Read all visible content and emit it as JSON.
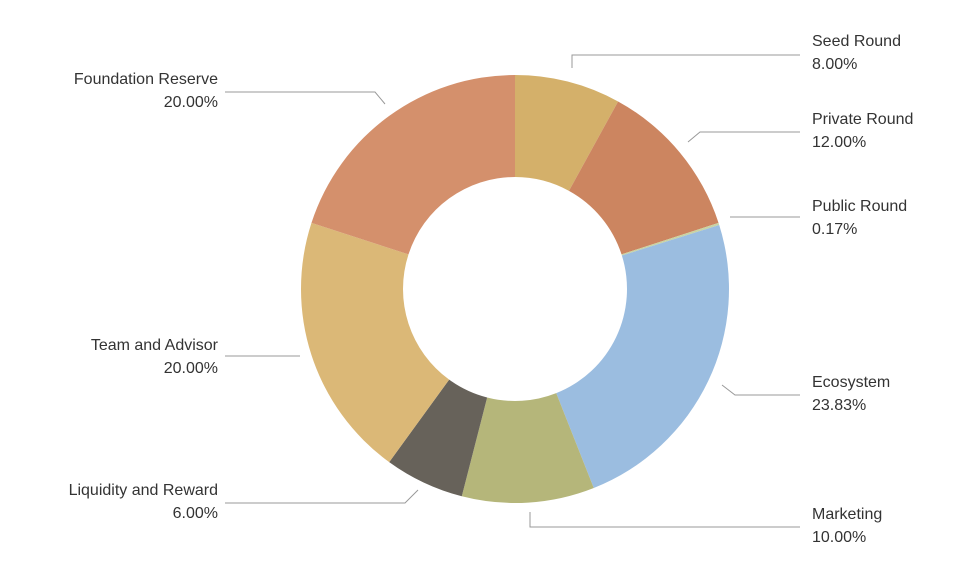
{
  "chart_data": {
    "type": "donut",
    "categories": [
      "Seed Round",
      "Private Round",
      "Public Round",
      "Ecosystem",
      "Marketing",
      "Liquidity and Reward",
      "Team and Advisor",
      "Foundation Reserve"
    ],
    "values": [
      8.0,
      12.0,
      0.17,
      23.83,
      10.0,
      6.0,
      20.0,
      20.0
    ],
    "value_labels": [
      "8.00%",
      "12.00%",
      "0.17%",
      "23.83%",
      "10.00%",
      "6.00%",
      "20.00%",
      "20.00%"
    ],
    "colors": [
      "#d4b06a",
      "#cc8560",
      "#c9d3a3",
      "#9bbde0",
      "#b5b67a",
      "#67625a",
      "#dbb877",
      "#d4906c"
    ]
  }
}
